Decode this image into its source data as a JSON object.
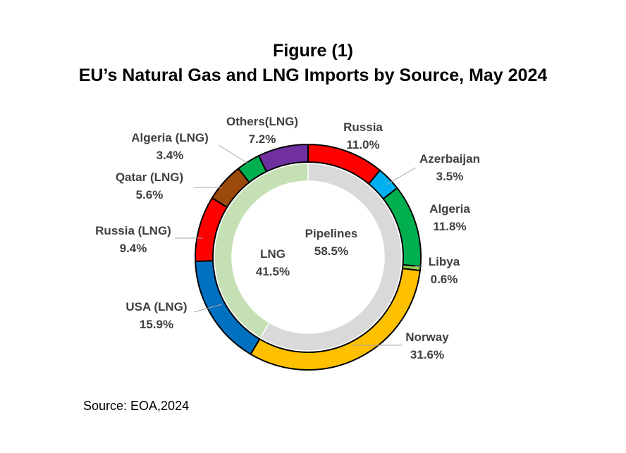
{
  "chart_data": {
    "type": "pie",
    "title": "Figure (1)",
    "subtitle": "EU’s Natural Gas and LNG Imports by Source, May 2024",
    "source": "Source: EOA,2024",
    "inner_ring": [
      {
        "name": "Pipelines",
        "value": 58.5,
        "label": "58.5%",
        "color": "#D9D9D9"
      },
      {
        "name": "LNG",
        "value": 41.5,
        "label": "41.5%",
        "color": "#C5E0B4"
      }
    ],
    "outer_ring": [
      {
        "name": "Russia",
        "value": 11.0,
        "label": "11.0%",
        "color": "#FF0000"
      },
      {
        "name": "Azerbaijan",
        "value": 3.5,
        "label": "3.5%",
        "color": "#00B0F0"
      },
      {
        "name": "Algeria",
        "value": 11.8,
        "label": "11.8%",
        "color": "#00B050"
      },
      {
        "name": "Libya",
        "value": 0.6,
        "label": "0.6%",
        "color": "#92D050"
      },
      {
        "name": "Norway",
        "value": 31.6,
        "label": "31.6%",
        "color": "#FFC000"
      },
      {
        "name": "USA (LNG)",
        "value": 15.9,
        "label": "15.9%",
        "color": "#0070C0"
      },
      {
        "name": "Russia (LNG)",
        "value": 9.4,
        "label": "9.4%",
        "color": "#FF0000"
      },
      {
        "name": "Qatar (LNG)",
        "value": 5.6,
        "label": "5.6%",
        "color": "#9C4A0C"
      },
      {
        "name": "Algeria  (LNG)",
        "value": 3.4,
        "label": "3.4%",
        "color": "#00B050"
      },
      {
        "name": "Others(LNG)",
        "value": 7.2,
        "label": "7.2%",
        "color": "#7030A0"
      }
    ]
  }
}
